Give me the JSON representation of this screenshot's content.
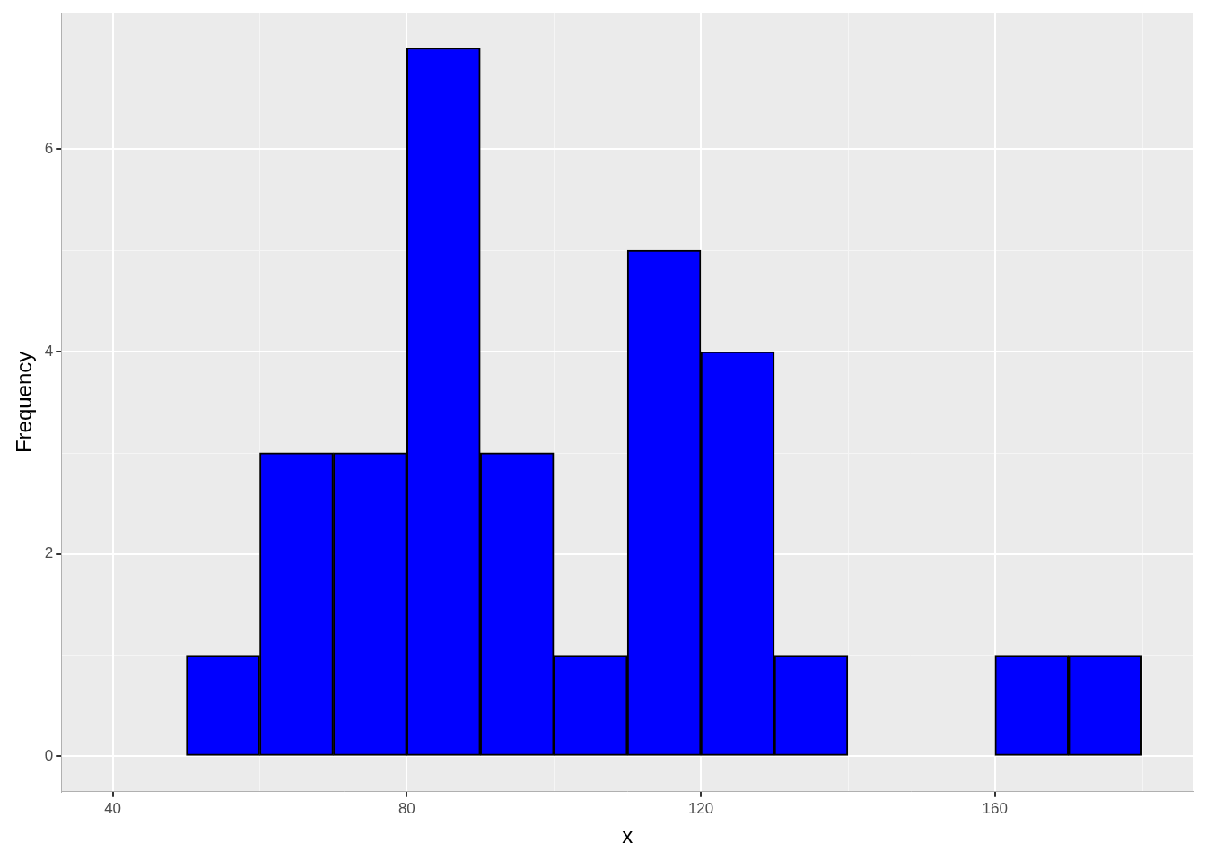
{
  "chart_data": {
    "type": "histogram",
    "bins": [
      40,
      50,
      60,
      70,
      80,
      90,
      100,
      110,
      120,
      130,
      140,
      150,
      160,
      170,
      180
    ],
    "values": [
      0,
      1,
      3,
      3,
      7,
      3,
      1,
      5,
      4,
      1,
      0,
      0,
      1,
      1
    ],
    "color": "#0000ff",
    "x_label": "x",
    "y_label": "Frequency",
    "xlim": [
      33,
      187
    ],
    "xticks": [
      40,
      80,
      120,
      160
    ],
    "ylim": [
      -0.35,
      7.35
    ],
    "yticks": [
      0,
      2,
      4,
      6
    ],
    "grid": true
  }
}
